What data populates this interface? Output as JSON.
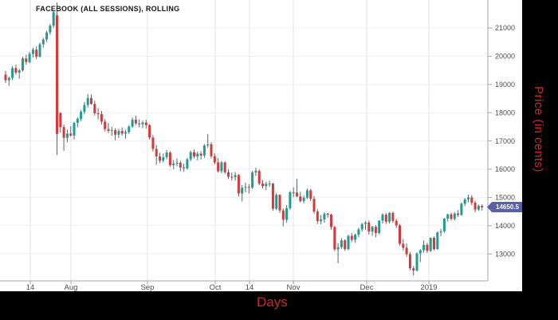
{
  "chart_data": {
    "type": "candlestick",
    "title": "FACEBOOK (ALL SESSIONS), ROLLING",
    "xlabel": "Days",
    "ylabel": "Price (in cents)",
    "price_unit": "cents",
    "ylim": [
      12040,
      21990
    ],
    "y_ticks": [
      21000,
      20000,
      19000,
      18000,
      17000,
      16000,
      15000,
      14000,
      13000
    ],
    "x_ticks": [
      {
        "label": "14",
        "x": 38
      },
      {
        "label": "Aug",
        "x": 89
      },
      {
        "label": "Sep",
        "x": 185
      },
      {
        "label": "Oct",
        "x": 270
      },
      {
        "label": "14",
        "x": 313
      },
      {
        "label": "Nov",
        "x": 368
      },
      {
        "label": "Dec",
        "x": 460
      },
      {
        "label": "2019",
        "x": 538
      }
    ],
    "last_price": 14650.5,
    "legend_position": "none",
    "grid": true,
    "candles": [
      [
        19350,
        19480,
        19050,
        19150
      ],
      [
        19150,
        19280,
        18950,
        19230
      ],
      [
        19230,
        19650,
        19150,
        19580
      ],
      [
        19580,
        19700,
        19350,
        19420
      ],
      [
        19420,
        19550,
        19200,
        19500
      ],
      [
        19500,
        19980,
        19450,
        19920
      ],
      [
        19920,
        20050,
        19700,
        19790
      ],
      [
        19790,
        20150,
        19750,
        20080
      ],
      [
        20080,
        20300,
        19950,
        20230
      ],
      [
        20230,
        20350,
        19900,
        19980
      ],
      [
        19980,
        20480,
        19950,
        20420
      ],
      [
        20420,
        20650,
        20300,
        20590
      ],
      [
        20590,
        20900,
        20500,
        20840
      ],
      [
        20840,
        21150,
        20760,
        21080
      ],
      [
        21080,
        21620,
        21000,
        21560
      ],
      [
        21450,
        21900,
        16500,
        17250
      ],
      [
        17990,
        18010,
        17300,
        17490
      ],
      [
        17490,
        17580,
        16650,
        17110
      ],
      [
        17110,
        17400,
        16950,
        17260
      ],
      [
        17260,
        17520,
        17150,
        17190
      ],
      [
        17190,
        17680,
        17050,
        17640
      ],
      [
        17640,
        17830,
        17480,
        17780
      ],
      [
        17780,
        18100,
        17700,
        18030
      ],
      [
        18030,
        18380,
        17950,
        18270
      ],
      [
        18270,
        18660,
        18180,
        18520
      ],
      [
        18520,
        18640,
        18280,
        18310
      ],
      [
        18310,
        18420,
        17900,
        17980
      ],
      [
        17980,
        18160,
        17760,
        17950
      ],
      [
        17950,
        18060,
        17580,
        17680
      ],
      [
        17680,
        17770,
        17340,
        17420
      ],
      [
        17420,
        17640,
        17280,
        17360
      ],
      [
        17360,
        17500,
        17180,
        17380
      ],
      [
        17380,
        17450,
        17020,
        17220
      ],
      [
        17220,
        17420,
        17100,
        17350
      ],
      [
        17350,
        17480,
        17180,
        17260
      ],
      [
        17260,
        17390,
        17080,
        17310
      ],
      [
        17310,
        17560,
        17250,
        17510
      ],
      [
        17510,
        17830,
        17460,
        17750
      ],
      [
        17750,
        17900,
        17560,
        17620
      ],
      [
        17620,
        17760,
        17480,
        17590
      ],
      [
        17590,
        17720,
        17450,
        17650
      ],
      [
        17650,
        17750,
        17440,
        17560
      ],
      [
        17560,
        17600,
        17050,
        17120
      ],
      [
        17120,
        17200,
        16620,
        16720
      ],
      [
        16720,
        16860,
        16160,
        16450
      ],
      [
        16450,
        16580,
        16220,
        16300
      ],
      [
        16300,
        16560,
        16240,
        16420
      ],
      [
        16420,
        16680,
        16350,
        16590
      ],
      [
        16590,
        16640,
        16080,
        16140
      ],
      [
        16140,
        16320,
        16000,
        16200
      ],
      [
        16200,
        16390,
        16100,
        16230
      ],
      [
        16230,
        16300,
        15930,
        16060
      ],
      [
        16060,
        16200,
        15910,
        16030
      ],
      [
        16030,
        16400,
        15980,
        16350
      ],
      [
        16350,
        16660,
        16280,
        16600
      ],
      [
        16600,
        16700,
        16380,
        16450
      ],
      [
        16450,
        16620,
        16310,
        16550
      ],
      [
        16550,
        16640,
        16340,
        16480
      ],
      [
        16480,
        16890,
        16400,
        16840
      ],
      [
        16840,
        17240,
        16760,
        16880
      ],
      [
        16880,
        16950,
        16380,
        16460
      ],
      [
        16460,
        16560,
        16170,
        16240
      ],
      [
        16240,
        16390,
        15880,
        15930
      ],
      [
        15930,
        16290,
        15860,
        16240
      ],
      [
        16240,
        16280,
        15830,
        15890
      ],
      [
        15890,
        16000,
        15650,
        15730
      ],
      [
        15730,
        15880,
        15600,
        15720
      ],
      [
        15720,
        15900,
        15590,
        15790
      ],
      [
        15790,
        15830,
        15030,
        15140
      ],
      [
        15140,
        15440,
        14850,
        15340
      ],
      [
        15340,
        15520,
        15180,
        15370
      ],
      [
        15370,
        15470,
        15140,
        15350
      ],
      [
        15350,
        15950,
        15300,
        15880
      ],
      [
        15880,
        16050,
        15760,
        15940
      ],
      [
        15940,
        15990,
        15430,
        15490
      ],
      [
        15490,
        15620,
        15310,
        15400
      ],
      [
        15400,
        15560,
        15270,
        15480
      ],
      [
        15480,
        15590,
        15370,
        15490
      ],
      [
        15490,
        15520,
        14530,
        14600
      ],
      [
        14600,
        15150,
        14550,
        15090
      ],
      [
        15090,
        15110,
        14450,
        14540
      ],
      [
        14540,
        14610,
        13980,
        14210
      ],
      [
        14210,
        14730,
        14100,
        14620
      ],
      [
        14620,
        15230,
        14560,
        15180
      ],
      [
        15180,
        15350,
        15020,
        15170
      ],
      [
        15170,
        15660,
        15000,
        15040
      ],
      [
        15040,
        15200,
        14820,
        14870
      ],
      [
        14870,
        15070,
        14790,
        14990
      ],
      [
        14990,
        15320,
        14950,
        15250
      ],
      [
        15250,
        15300,
        14870,
        14950
      ],
      [
        14950,
        15050,
        14430,
        14500
      ],
      [
        14500,
        14580,
        14060,
        14160
      ],
      [
        14160,
        14380,
        14050,
        14220
      ],
      [
        14220,
        14480,
        14110,
        14420
      ],
      [
        14420,
        14450,
        14280,
        14390
      ],
      [
        14390,
        14420,
        13860,
        13950
      ],
      [
        13950,
        13990,
        13100,
        13160
      ],
      [
        13160,
        13380,
        12670,
        13240
      ],
      [
        13240,
        13560,
        13180,
        13480
      ],
      [
        13480,
        13520,
        13110,
        13170
      ],
      [
        13170,
        13680,
        13130,
        13640
      ],
      [
        13640,
        13740,
        13420,
        13500
      ],
      [
        13500,
        13720,
        13390,
        13680
      ],
      [
        13680,
        13920,
        13590,
        13870
      ],
      [
        13870,
        14100,
        13790,
        14060
      ],
      [
        14060,
        14160,
        13850,
        14110
      ],
      [
        14110,
        14180,
        13680,
        13790
      ],
      [
        13790,
        14000,
        13640,
        13960
      ],
      [
        13960,
        14020,
        13590,
        13740
      ],
      [
        13740,
        14190,
        13690,
        14180
      ],
      [
        14180,
        14440,
        14080,
        14390
      ],
      [
        14390,
        14450,
        14060,
        14140
      ],
      [
        14140,
        14480,
        14080,
        14450
      ],
      [
        14450,
        14500,
        14100,
        14170
      ],
      [
        14170,
        14240,
        13920,
        14010
      ],
      [
        14010,
        14060,
        13290,
        13360
      ],
      [
        13360,
        13530,
        13120,
        13220
      ],
      [
        13220,
        13370,
        12900,
        12990
      ],
      [
        12990,
        13070,
        12420,
        12490
      ],
      [
        12490,
        12570,
        12240,
        12410
      ],
      [
        12410,
        13060,
        12380,
        13020
      ],
      [
        13020,
        13170,
        12710,
        13130
      ],
      [
        13130,
        13480,
        13050,
        13320
      ],
      [
        13320,
        13390,
        13030,
        13110
      ],
      [
        13110,
        13580,
        13060,
        13570
      ],
      [
        13570,
        13620,
        13120,
        13170
      ],
      [
        13170,
        13800,
        13150,
        13760
      ],
      [
        13760,
        13890,
        13630,
        13800
      ],
      [
        13800,
        14270,
        13750,
        14250
      ],
      [
        14250,
        14420,
        14150,
        14400
      ],
      [
        14400,
        14460,
        14190,
        14240
      ],
      [
        14240,
        14480,
        14180,
        14430
      ],
      [
        14430,
        14550,
        14310,
        14380
      ],
      [
        14380,
        14820,
        14350,
        14780
      ],
      [
        14780,
        14980,
        14690,
        14930
      ],
      [
        14930,
        15100,
        14830,
        15000
      ],
      [
        15000,
        15080,
        14730,
        14810
      ],
      [
        14810,
        14880,
        14480,
        14570
      ],
      [
        14570,
        14750,
        14520,
        14700
      ],
      [
        14700,
        14760,
        14540,
        14650.5
      ]
    ]
  },
  "colors": {
    "up": "#1f9c90",
    "down": "#d6383c",
    "wick": "#5d6569",
    "h_grid": "#f0f0f0",
    "v_grid": "#e4e4e4",
    "axis": "#a6a6a6",
    "axis_label": "#4c4c4c",
    "tag_bg": "#5a5fa8",
    "tag_text": "#ffffff",
    "accent_red": "#cc2a27",
    "strip_bg": "#000000",
    "title_text": "#161616"
  }
}
